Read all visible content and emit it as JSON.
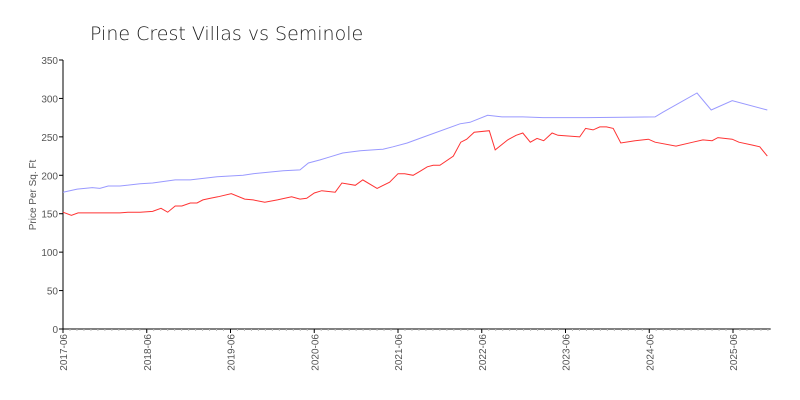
{
  "chart_data": {
    "type": "line",
    "title": "Pine Crest Villas vs Seminole",
    "xlabel": "",
    "ylabel": "Price Per Sq. Ft",
    "ylim": [
      0,
      350
    ],
    "yticks": [
      0,
      50,
      100,
      150,
      200,
      250,
      300,
      350
    ],
    "xlim": [
      2017.5,
      2025.95
    ],
    "xticks": [
      {
        "x": 2017.5,
        "label": "2017-06"
      },
      {
        "x": 2018.5,
        "label": "2018-06"
      },
      {
        "x": 2019.5,
        "label": "2019-06"
      },
      {
        "x": 2020.5,
        "label": "2020-06"
      },
      {
        "x": 2021.5,
        "label": "2021-06"
      },
      {
        "x": 2022.5,
        "label": "2022-06"
      },
      {
        "x": 2023.5,
        "label": "2023-06"
      },
      {
        "x": 2024.5,
        "label": "2024-06"
      },
      {
        "x": 2025.5,
        "label": "2025-06"
      }
    ],
    "grid": false,
    "legend": "none",
    "series": [
      {
        "color": "#9999ff",
        "x": [
          2017.5,
          2017.67,
          2017.76,
          2017.85,
          2017.94,
          2018.04,
          2018.18,
          2018.42,
          2018.57,
          2018.84,
          2019.02,
          2019.34,
          2019.65,
          2019.77,
          2020.13,
          2020.33,
          2020.43,
          2020.57,
          2020.69,
          2020.84,
          2021.05,
          2021.32,
          2021.44,
          2021.61,
          2021.76,
          2022.24,
          2022.36,
          2022.57,
          2022.74,
          2022.99,
          2023.23,
          2023.76,
          2024.57,
          2024.66,
          2025.07,
          2025.24,
          2025.49,
          2025.91
        ],
        "values": [
          178,
          182,
          183,
          184,
          183,
          186,
          186,
          189,
          190,
          194,
          194,
          198,
          200,
          202,
          206,
          207,
          216,
          220,
          224,
          229,
          232,
          234,
          237,
          242,
          248,
          267,
          269,
          278,
          276,
          276,
          275,
          275,
          276,
          282,
          307,
          285,
          297,
          285
        ]
      },
      {
        "color": "#ff3333",
        "x": [
          2017.5,
          2017.6,
          2017.68,
          2018.18,
          2018.28,
          2018.42,
          2018.57,
          2018.67,
          2018.75,
          2018.84,
          2018.92,
          2019.02,
          2019.1,
          2019.17,
          2019.26,
          2019.35,
          2019.51,
          2019.67,
          2019.77,
          2019.91,
          2020.06,
          2020.23,
          2020.33,
          2020.41,
          2020.5,
          2020.59,
          2020.75,
          2020.83,
          2020.99,
          2021.08,
          2021.25,
          2021.4,
          2021.5,
          2021.58,
          2021.68,
          2021.76,
          2021.85,
          2021.92,
          2022.0,
          2022.16,
          2022.25,
          2022.32,
          2022.41,
          2022.59,
          2022.66,
          2022.81,
          2022.91,
          2022.99,
          2023.08,
          2023.16,
          2023.24,
          2023.34,
          2023.41,
          2023.67,
          2023.74,
          2023.83,
          2023.91,
          2023.99,
          2024.07,
          2024.16,
          2024.33,
          2024.49,
          2024.57,
          2024.82,
          2025.02,
          2025.14,
          2025.25,
          2025.32,
          2025.49,
          2025.57,
          2025.74,
          2025.82,
          2025.91
        ],
        "values": [
          152,
          148,
          151,
          151,
          152,
          152,
          153,
          157,
          152,
          160,
          160,
          164,
          164,
          168,
          170,
          172,
          176,
          169,
          168,
          165,
          168,
          172,
          169,
          170,
          177,
          180,
          178,
          190,
          187,
          194,
          183,
          191,
          202,
          202,
          200,
          205,
          211,
          213,
          213,
          225,
          243,
          247,
          256,
          258,
          233,
          246,
          252,
          255,
          243,
          248,
          245,
          255,
          252,
          250,
          261,
          259,
          263,
          263,
          261,
          242,
          245,
          247,
          243,
          238,
          243,
          246,
          245,
          249,
          247,
          243,
          239,
          237,
          225
        ]
      }
    ]
  }
}
